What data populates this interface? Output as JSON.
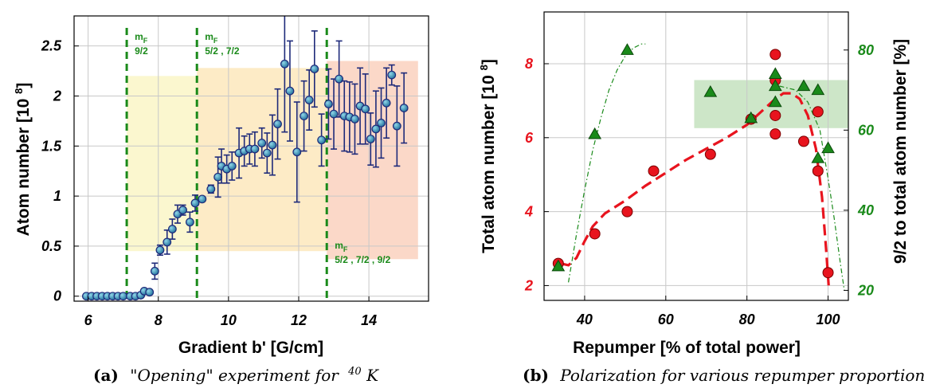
{
  "chart_data": [
    {
      "type": "scatter",
      "xlabel": "Gradient b'  [G/cm]",
      "ylabel": "Atom number [10⁸]",
      "xlim": [
        5.6,
        15.7
      ],
      "ylim": [
        -0.05,
        2.8
      ],
      "xticks": [
        "6",
        "8",
        "10",
        "12",
        "14"
      ],
      "yticks": [
        "0",
        "0.5",
        "1",
        "1.5",
        "2",
        "2.5"
      ],
      "grid": true,
      "caption_tag": "(a)",
      "caption_main": "\"Opening\" experiment for",
      "caption_isotope": "40",
      "caption_element": "K",
      "vlines": [
        {
          "x": 7.1,
          "label_main": "m",
          "label_sub": "F",
          "label_states": "9/2"
        },
        {
          "x": 9.1,
          "label_main": "m",
          "label_sub": "F",
          "label_states": "5/2 , 7/2"
        },
        {
          "x": 12.8,
          "label_main": "m",
          "label_sub": "F",
          "label_states": "5/2 , 7/2 , 9/2"
        }
      ],
      "regions": [
        {
          "x0": 7.1,
          "x1": 9.1,
          "y0": 0.45,
          "y1": 2.2,
          "color": "#fbf7cf"
        },
        {
          "x0": 9.1,
          "x1": 12.8,
          "y0": 0.45,
          "y1": 2.28,
          "color": "#fdebc6"
        },
        {
          "x0": 12.8,
          "x1": 15.4,
          "y0": 0.37,
          "y1": 2.35,
          "color": "#fbd8c8"
        }
      ],
      "series": [
        {
          "points": [
            {
              "x": 5.95,
              "y": 0.0,
              "err": 0.0
            },
            {
              "x": 6.1,
              "y": 0.0,
              "err": 0.0
            },
            {
              "x": 6.25,
              "y": 0.0,
              "err": 0.0
            },
            {
              "x": 6.4,
              "y": 0.0,
              "err": 0.0
            },
            {
              "x": 6.55,
              "y": 0.0,
              "err": 0.0
            },
            {
              "x": 6.7,
              "y": 0.0,
              "err": 0.0
            },
            {
              "x": 6.85,
              "y": 0.0,
              "err": 0.0
            },
            {
              "x": 7.0,
              "y": 0.0,
              "err": 0.0
            },
            {
              "x": 7.2,
              "y": 0.0,
              "err": 0.0
            },
            {
              "x": 7.35,
              "y": 0.0,
              "err": 0.0
            },
            {
              "x": 7.5,
              "y": 0.01,
              "err": 0.01
            },
            {
              "x": 7.6,
              "y": 0.05,
              "err": 0.02
            },
            {
              "x": 7.75,
              "y": 0.04,
              "err": 0.02
            },
            {
              "x": 7.9,
              "y": 0.25,
              "err": 0.08
            },
            {
              "x": 8.05,
              "y": 0.46,
              "err": 0.05
            },
            {
              "x": 8.25,
              "y": 0.54,
              "err": 0.12
            },
            {
              "x": 8.4,
              "y": 0.67,
              "err": 0.1
            },
            {
              "x": 8.55,
              "y": 0.82,
              "err": 0.09
            },
            {
              "x": 8.7,
              "y": 0.86,
              "err": 0.05
            },
            {
              "x": 8.9,
              "y": 0.74,
              "err": 0.1
            },
            {
              "x": 9.05,
              "y": 0.93,
              "err": 0.08
            },
            {
              "x": 9.25,
              "y": 0.97,
              "err": 0.02
            },
            {
              "x": 9.5,
              "y": 1.07,
              "err": 0.04
            },
            {
              "x": 9.7,
              "y": 1.19,
              "err": 0.2
            },
            {
              "x": 9.8,
              "y": 1.3,
              "err": 0.17
            },
            {
              "x": 9.95,
              "y": 1.27,
              "err": 0.14
            },
            {
              "x": 10.1,
              "y": 1.3,
              "err": 0.14
            },
            {
              "x": 10.3,
              "y": 1.43,
              "err": 0.25
            },
            {
              "x": 10.45,
              "y": 1.45,
              "err": 0.15
            },
            {
              "x": 10.6,
              "y": 1.47,
              "err": 0.15
            },
            {
              "x": 10.75,
              "y": 1.47,
              "err": 0.17
            },
            {
              "x": 10.95,
              "y": 1.53,
              "err": 0.15
            },
            {
              "x": 11.1,
              "y": 1.43,
              "err": 0.2
            },
            {
              "x": 11.25,
              "y": 1.51,
              "err": 0.3
            },
            {
              "x": 11.4,
              "y": 1.72,
              "err": 0.35
            },
            {
              "x": 11.6,
              "y": 2.32,
              "err": 0.68
            },
            {
              "x": 11.75,
              "y": 2.05,
              "err": 0.5
            },
            {
              "x": 11.95,
              "y": 1.44,
              "err": 0.5
            },
            {
              "x": 12.15,
              "y": 1.8,
              "err": 0.35
            },
            {
              "x": 12.3,
              "y": 1.96,
              "err": 0.3
            },
            {
              "x": 12.45,
              "y": 2.27,
              "err": 0.38
            },
            {
              "x": 12.65,
              "y": 1.56,
              "err": 0.26
            },
            {
              "x": 12.85,
              "y": 1.92,
              "err": 0.35
            },
            {
              "x": 13.0,
              "y": 1.82,
              "err": 0.35
            },
            {
              "x": 13.15,
              "y": 2.17,
              "err": 0.38
            },
            {
              "x": 13.3,
              "y": 1.8,
              "err": 0.35
            },
            {
              "x": 13.45,
              "y": 1.79,
              "err": 0.35
            },
            {
              "x": 13.6,
              "y": 1.77,
              "err": 0.35
            },
            {
              "x": 13.75,
              "y": 1.9,
              "err": 0.38
            },
            {
              "x": 13.9,
              "y": 1.87,
              "err": 0.35
            },
            {
              "x": 14.05,
              "y": 1.57,
              "err": 0.26
            },
            {
              "x": 14.2,
              "y": 1.67,
              "err": 0.38
            },
            {
              "x": 14.35,
              "y": 1.73,
              "err": 0.35
            },
            {
              "x": 14.5,
              "y": 1.93,
              "err": 0.35
            },
            {
              "x": 14.65,
              "y": 2.21,
              "err": 0.1
            },
            {
              "x": 14.8,
              "y": 1.7,
              "err": 0.4
            },
            {
              "x": 15.0,
              "y": 1.88,
              "err": 0.35
            }
          ],
          "marker_color": "#2f8fa8",
          "error_color": "#1e2a7a"
        }
      ]
    },
    {
      "type": "scatter",
      "xlabel": "Repumper [% of total power]",
      "ylabel": "Total atom number [10⁸]",
      "y2label": "9/2 to total atom number [%]",
      "xlim": [
        30,
        105
      ],
      "ylim": [
        1.6,
        9.4
      ],
      "y2lim": [
        17.5,
        89.5
      ],
      "xticks": [
        "40",
        "60",
        "80",
        "100"
      ],
      "yticks": [
        "2",
        "4",
        "6",
        "8"
      ],
      "y2ticks": [
        "20",
        "40",
        "60",
        "80"
      ],
      "grid": true,
      "caption_tag": "(b)",
      "caption_main": "Polarization for various repumper proportion",
      "band": {
        "x0": 67,
        "x1": 105,
        "y2_0": 60.5,
        "y2_1": 72.5,
        "color": "#cde6c8"
      },
      "series": [
        {
          "marker": "circle",
          "color": "#e8141e",
          "axis": "left",
          "points": [
            [
              33.5,
              2.6
            ],
            [
              42.5,
              3.4
            ],
            [
              50.5,
              4.0
            ],
            [
              57,
              5.1
            ],
            [
              71,
              5.55
            ],
            [
              81,
              6.5
            ],
            [
              87,
              8.25
            ],
            [
              87,
              7.55
            ],
            [
              87,
              6.6
            ],
            [
              87,
              6.1
            ],
            [
              94,
              5.9
            ],
            [
              97.5,
              6.7
            ],
            [
              97.5,
              5.1
            ],
            [
              100,
              2.35
            ]
          ]
        },
        {
          "marker": "triangle",
          "color": "#1a8a1a",
          "axis": "right",
          "points": [
            [
              33.5,
              26
            ],
            [
              42.5,
              59
            ],
            [
              50.5,
              80
            ],
            [
              71,
              69.5
            ],
            [
              81,
              63
            ],
            [
              87,
              74
            ],
            [
              87,
              71
            ],
            [
              87,
              67
            ],
            [
              94,
              71
            ],
            [
              97.5,
              70
            ],
            [
              97.5,
              53
            ],
            [
              100,
              55.5
            ]
          ]
        }
      ],
      "fits": [
        {
          "color": "#e8141e",
          "axis": "left",
          "style": "dashed",
          "points": [
            [
              34,
              2.6
            ],
            [
              36,
              2.55
            ],
            [
              38,
              2.75
            ],
            [
              40,
              3.2
            ],
            [
              42,
              3.6
            ],
            [
              45,
              3.95
            ],
            [
              50,
              4.3
            ],
            [
              55,
              4.7
            ],
            [
              60,
              5.05
            ],
            [
              65,
              5.4
            ],
            [
              70,
              5.7
            ],
            [
              75,
              6.0
            ],
            [
              80,
              6.35
            ],
            [
              84,
              6.75
            ],
            [
              87,
              7.05
            ],
            [
              89,
              7.2
            ],
            [
              91,
              7.2
            ],
            [
              93,
              7.05
            ],
            [
              95,
              6.6
            ],
            [
              97,
              5.7
            ],
            [
              98.5,
              4.4
            ],
            [
              99.5,
              3.0
            ],
            [
              100.2,
              1.9
            ]
          ]
        },
        {
          "color": "#1a8a1a",
          "axis": "right",
          "style": "dash-dot",
          "points": [
            [
              36,
              22
            ],
            [
              38,
              34
            ],
            [
              40,
              45
            ],
            [
              42,
              55
            ],
            [
              44,
              63
            ],
            [
              46,
              70
            ],
            [
              48,
              75
            ],
            [
              50,
              78.5
            ],
            [
              52,
              80.5
            ],
            [
              54,
              81.5
            ],
            [
              55,
              81.5
            ]
          ]
        },
        {
          "color": "#1a8a1a",
          "axis": "right",
          "style": "dash-dot",
          "points": [
            [
              88,
              71
            ],
            [
              92,
              70
            ],
            [
              95,
              67
            ],
            [
              98,
              60
            ],
            [
              100,
              48
            ],
            [
              101.5,
              38
            ],
            [
              103,
              27
            ],
            [
              104,
              20
            ]
          ]
        }
      ]
    }
  ]
}
